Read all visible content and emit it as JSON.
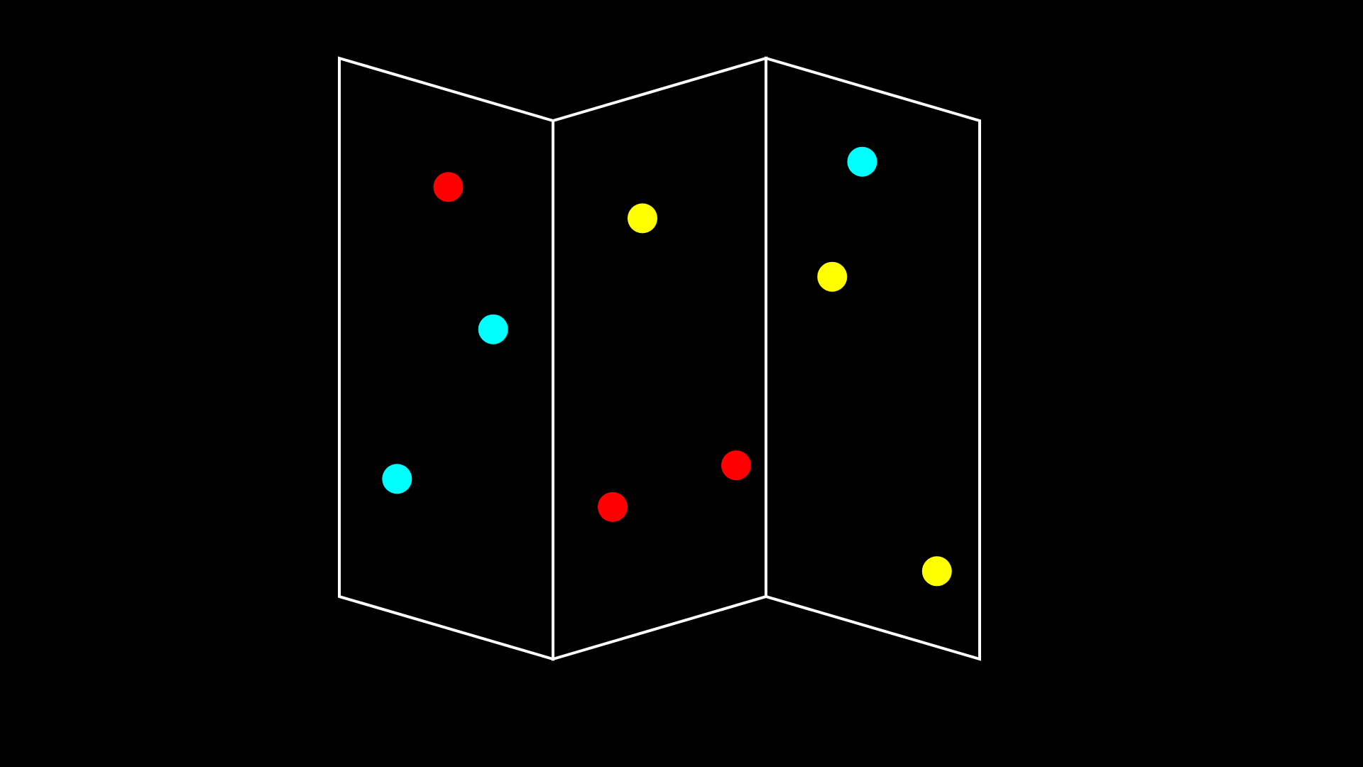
{
  "map": {
    "panel_count": 3,
    "background_color": "#000000",
    "outline_color": "#ffffff",
    "fold_style": "zigzag"
  },
  "marker_colors": {
    "red": "#ff0000",
    "yellow": "#ffff00",
    "cyan": "#00ffff"
  },
  "panels": [
    {
      "id": "left",
      "markers": [
        {
          "color": "red",
          "u": 0.51,
          "v": 0.18
        },
        {
          "color": "cyan",
          "u": 0.72,
          "v": 0.42
        },
        {
          "color": "cyan",
          "u": 0.27,
          "v": 0.75
        }
      ]
    },
    {
      "id": "middle",
      "markers": [
        {
          "color": "yellow",
          "u": 0.42,
          "v": 0.23
        },
        {
          "color": "red",
          "u": 0.86,
          "v": 0.74
        },
        {
          "color": "red",
          "u": 0.28,
          "v": 0.75
        }
      ]
    },
    {
      "id": "right",
      "markers": [
        {
          "color": "cyan",
          "u": 0.45,
          "v": 0.14
        },
        {
          "color": "yellow",
          "u": 0.31,
          "v": 0.37
        },
        {
          "color": "yellow",
          "u": 0.8,
          "v": 0.86
        }
      ]
    }
  ]
}
